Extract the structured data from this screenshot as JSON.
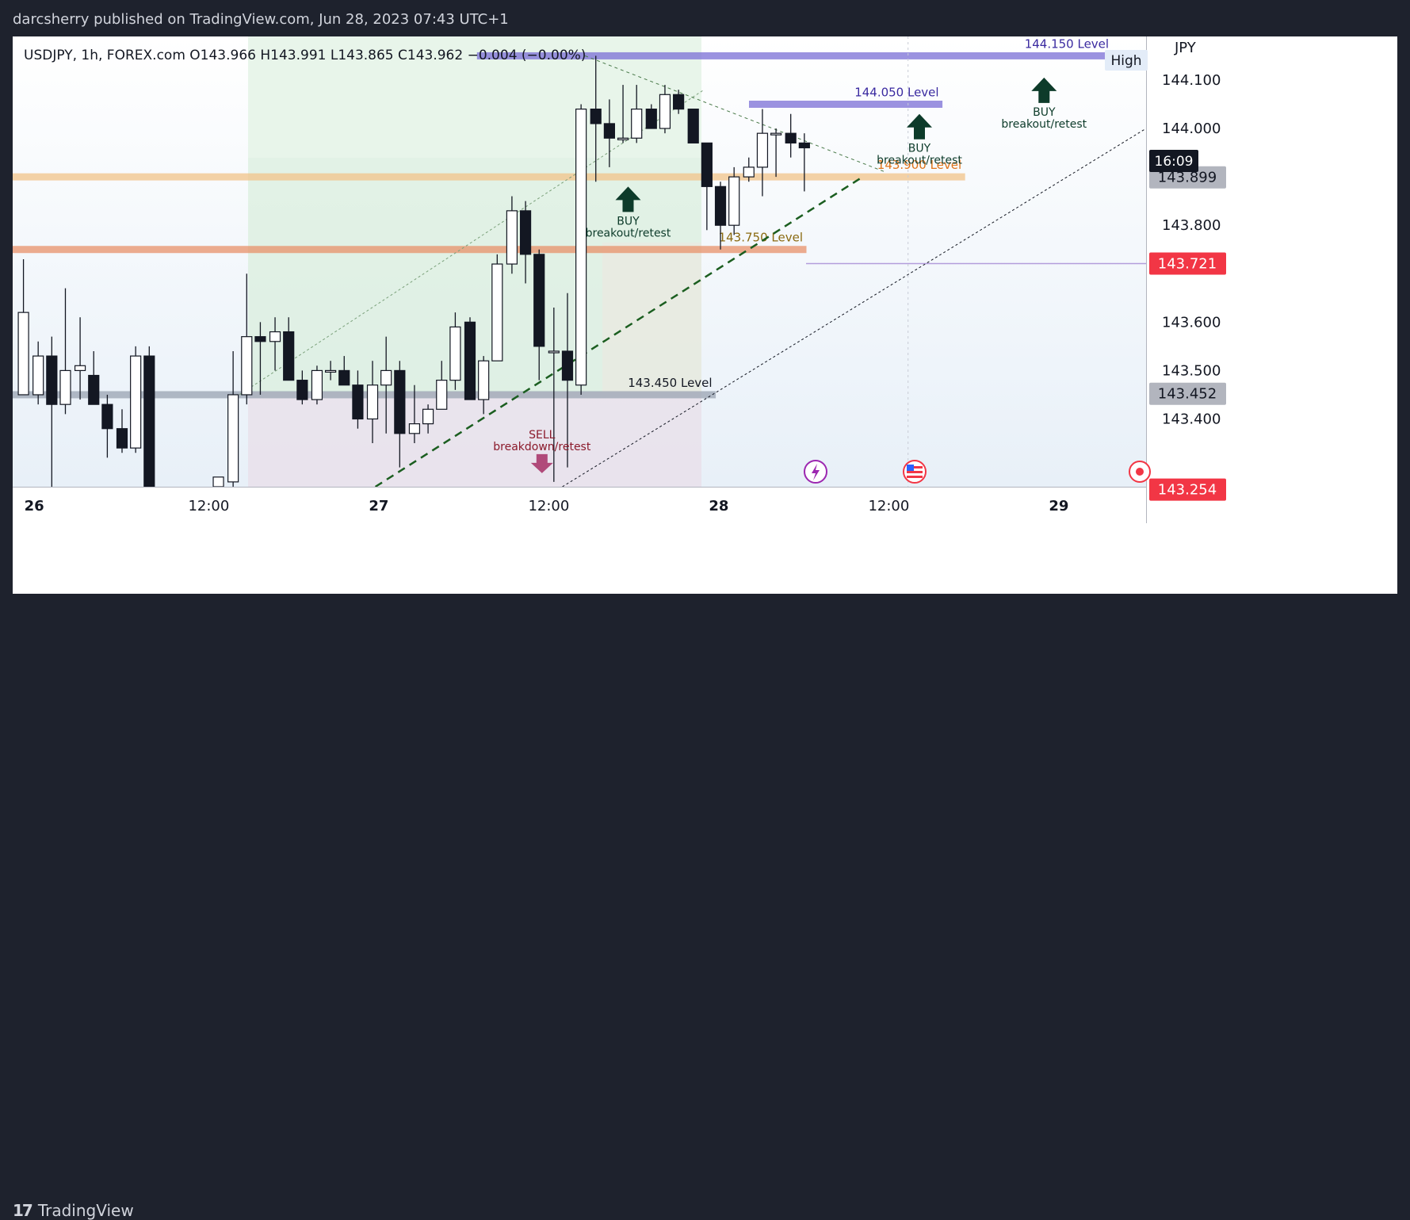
{
  "publisher_line": "darcsherry published on TradingView.com, Jun 28, 2023 07:43 UTC+1",
  "ohlc_line": "USDJPY, 1h, FOREX.com  O143.966  H143.991  L143.865  C143.962  −0.004 (−0.00%)",
  "currency": "JPY",
  "brand": "TradingView",
  "high_label": "High",
  "countdown": "16:09",
  "colors": {
    "accent_red": "#f23645",
    "dark_panel": "#131722",
    "gray_panel": "#b2b5be"
  },
  "chart_data": {
    "type": "candlestick",
    "symbol": "USDJPY",
    "timeframe": "1h",
    "ylim": [
      143.26,
      144.19
    ],
    "y_ticks": [
      "144.100",
      "144.000",
      "143.800",
      "143.600",
      "143.500",
      "143.400"
    ],
    "x_ticks": [
      "26",
      "12:00",
      "27",
      "12:00",
      "28",
      "12:00",
      "29"
    ],
    "price_labels": [
      {
        "value": 143.899,
        "text": "143.899",
        "style": "gray"
      },
      {
        "value": 143.721,
        "text": "143.721",
        "style": "red"
      },
      {
        "value": 143.452,
        "text": "143.452",
        "style": "gray"
      },
      {
        "value": 143.254,
        "text": "143.254",
        "style": "red"
      }
    ],
    "levels": [
      {
        "name": "144.150 Level",
        "price": 144.15,
        "x1": 41,
        "x2": 97,
        "color": "#7b6fd6",
        "label_color": "#3a2aa0"
      },
      {
        "name": "144.050 Level",
        "price": 144.05,
        "x1": 65,
        "x2": 82,
        "color": "#7b6fd6",
        "label_color": "#3a2aa0"
      },
      {
        "name": "143.900 Level",
        "price": 143.9,
        "x1": 0,
        "x2": 84,
        "color": "#f2c48a",
        "label_color": "#e0741a"
      },
      {
        "name": "143.750 Level",
        "price": 143.75,
        "x1": 0,
        "x2": 70,
        "color": "#e8926a",
        "label_color": "#8a6a10"
      },
      {
        "name": "143.450 Level",
        "price": 143.45,
        "x1": 0,
        "x2": 62,
        "color": "#9aa4b2",
        "label_color": "#131722"
      }
    ],
    "annotations": [
      {
        "kind": "buy",
        "label": "BUY",
        "sub": "breakout/retest",
        "x": 91,
        "price": 144.105
      },
      {
        "kind": "buy",
        "label": "BUY",
        "sub": "breakout/retest",
        "x": 80,
        "price": 144.03
      },
      {
        "kind": "buy",
        "label": "BUY",
        "sub": "breakout/retest",
        "x": 54.3,
        "price": 143.88
      },
      {
        "kind": "sell",
        "label": "SELL",
        "sub": "breakdown/retest",
        "x": 46.7,
        "price": 143.36
      }
    ],
    "candles": [
      {
        "x": 0.6,
        "o": 143.45,
        "h": 143.73,
        "l": 143.45,
        "c": 143.62
      },
      {
        "x": 1.9,
        "o": 143.45,
        "h": 143.56,
        "l": 143.43,
        "c": 143.53
      },
      {
        "x": 3.1,
        "o": 143.53,
        "h": 143.57,
        "l": 143.26,
        "c": 143.43
      },
      {
        "x": 4.3,
        "o": 143.43,
        "h": 143.67,
        "l": 143.41,
        "c": 143.5
      },
      {
        "x": 5.6,
        "o": 143.5,
        "h": 143.61,
        "l": 143.44,
        "c": 143.51
      },
      {
        "x": 6.8,
        "o": 143.49,
        "h": 143.54,
        "l": 143.43,
        "c": 143.43
      },
      {
        "x": 8.0,
        "o": 143.43,
        "h": 143.45,
        "l": 143.32,
        "c": 143.38
      },
      {
        "x": 9.3,
        "o": 143.38,
        "h": 143.42,
        "l": 143.33,
        "c": 143.34
      },
      {
        "x": 10.5,
        "o": 143.34,
        "h": 143.55,
        "l": 143.33,
        "c": 143.53
      },
      {
        "x": 11.7,
        "o": 143.53,
        "h": 143.55,
        "l": 143.26,
        "c": 143.26
      },
      {
        "x": 17.8,
        "o": 143.26,
        "h": 143.28,
        "l": 143.26,
        "c": 143.28
      },
      {
        "x": 19.1,
        "o": 143.27,
        "h": 143.54,
        "l": 143.26,
        "c": 143.45
      },
      {
        "x": 20.3,
        "o": 143.45,
        "h": 143.7,
        "l": 143.43,
        "c": 143.57
      },
      {
        "x": 21.5,
        "o": 143.57,
        "h": 143.6,
        "l": 143.45,
        "c": 143.56
      },
      {
        "x": 22.8,
        "o": 143.56,
        "h": 143.61,
        "l": 143.5,
        "c": 143.58
      },
      {
        "x": 24.0,
        "o": 143.58,
        "h": 143.61,
        "l": 143.48,
        "c": 143.48
      },
      {
        "x": 25.2,
        "o": 143.48,
        "h": 143.5,
        "l": 143.43,
        "c": 143.44
      },
      {
        "x": 26.5,
        "o": 143.44,
        "h": 143.51,
        "l": 143.43,
        "c": 143.5
      },
      {
        "x": 27.7,
        "o": 143.5,
        "h": 143.52,
        "l": 143.48,
        "c": 143.5
      },
      {
        "x": 28.9,
        "o": 143.5,
        "h": 143.53,
        "l": 143.47,
        "c": 143.47
      },
      {
        "x": 30.1,
        "o": 143.47,
        "h": 143.5,
        "l": 143.38,
        "c": 143.4
      },
      {
        "x": 31.4,
        "o": 143.4,
        "h": 143.52,
        "l": 143.35,
        "c": 143.47
      },
      {
        "x": 32.6,
        "o": 143.47,
        "h": 143.57,
        "l": 143.37,
        "c": 143.5
      },
      {
        "x": 33.8,
        "o": 143.5,
        "h": 143.52,
        "l": 143.3,
        "c": 143.37
      },
      {
        "x": 35.1,
        "o": 143.37,
        "h": 143.47,
        "l": 143.35,
        "c": 143.39
      },
      {
        "x": 36.3,
        "o": 143.39,
        "h": 143.43,
        "l": 143.37,
        "c": 143.42
      },
      {
        "x": 37.5,
        "o": 143.42,
        "h": 143.52,
        "l": 143.42,
        "c": 143.48
      },
      {
        "x": 38.7,
        "o": 143.48,
        "h": 143.62,
        "l": 143.46,
        "c": 143.59
      },
      {
        "x": 40.0,
        "o": 143.6,
        "h": 143.61,
        "l": 143.44,
        "c": 143.44
      },
      {
        "x": 41.2,
        "o": 143.44,
        "h": 143.53,
        "l": 143.41,
        "c": 143.52
      },
      {
        "x": 42.4,
        "o": 143.52,
        "h": 143.74,
        "l": 143.52,
        "c": 143.72
      },
      {
        "x": 43.7,
        "o": 143.72,
        "h": 143.86,
        "l": 143.7,
        "c": 143.83
      },
      {
        "x": 44.9,
        "o": 143.83,
        "h": 143.85,
        "l": 143.68,
        "c": 143.74
      },
      {
        "x": 46.1,
        "o": 143.74,
        "h": 143.75,
        "l": 143.48,
        "c": 143.55
      },
      {
        "x": 47.4,
        "o": 143.54,
        "h": 143.63,
        "l": 143.27,
        "c": 143.54
      },
      {
        "x": 48.6,
        "o": 143.54,
        "h": 143.66,
        "l": 143.3,
        "c": 143.48
      },
      {
        "x": 49.8,
        "o": 143.47,
        "h": 144.05,
        "l": 143.45,
        "c": 144.04
      },
      {
        "x": 51.1,
        "o": 144.04,
        "h": 144.15,
        "l": 143.89,
        "c": 144.01
      },
      {
        "x": 52.3,
        "o": 144.01,
        "h": 144.06,
        "l": 143.92,
        "c": 143.98
      },
      {
        "x": 53.5,
        "o": 143.98,
        "h": 144.09,
        "l": 143.97,
        "c": 143.98
      },
      {
        "x": 54.7,
        "o": 143.98,
        "h": 144.09,
        "l": 143.97,
        "c": 144.04
      },
      {
        "x": 56.0,
        "o": 144.04,
        "h": 144.05,
        "l": 144.0,
        "c": 144.0
      },
      {
        "x": 57.2,
        "o": 144.0,
        "h": 144.09,
        "l": 143.99,
        "c": 144.07
      },
      {
        "x": 58.4,
        "o": 144.07,
        "h": 144.08,
        "l": 144.03,
        "c": 144.04
      },
      {
        "x": 59.7,
        "o": 144.04,
        "h": 144.04,
        "l": 143.97,
        "c": 143.97
      },
      {
        "x": 60.9,
        "o": 143.97,
        "h": 143.97,
        "l": 143.79,
        "c": 143.88
      },
      {
        "x": 62.1,
        "o": 143.88,
        "h": 143.89,
        "l": 143.75,
        "c": 143.8
      },
      {
        "x": 63.3,
        "o": 143.8,
        "h": 143.92,
        "l": 143.78,
        "c": 143.9
      },
      {
        "x": 64.6,
        "o": 143.9,
        "h": 143.94,
        "l": 143.89,
        "c": 143.92
      },
      {
        "x": 65.8,
        "o": 143.92,
        "h": 144.04,
        "l": 143.86,
        "c": 143.99
      },
      {
        "x": 67.0,
        "o": 143.99,
        "h": 144.0,
        "l": 143.9,
        "c": 143.99
      },
      {
        "x": 68.3,
        "o": 143.99,
        "h": 144.03,
        "l": 143.94,
        "c": 143.97
      },
      {
        "x": 69.5,
        "o": 143.97,
        "h": 143.99,
        "l": 143.87,
        "c": 143.96
      }
    ]
  }
}
